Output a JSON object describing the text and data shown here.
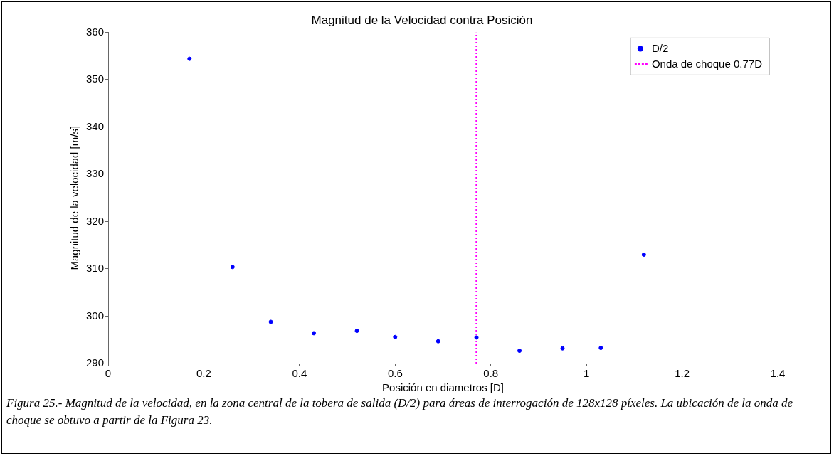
{
  "chart_data": {
    "type": "scatter",
    "title": "Magnitud de la Velocidad contra Posición",
    "xlabel": "Posición en diametros [D]",
    "ylabel": "Magnitud de la velocidad [m/s]",
    "x": [
      0.17,
      0.26,
      0.34,
      0.43,
      0.52,
      0.6,
      0.69,
      0.77,
      0.86,
      0.95,
      1.03,
      1.12
    ],
    "series": [
      {
        "name": "D/2",
        "color": "#0000ff",
        "marker": "circle",
        "values": [
          354.4,
          310.4,
          298.8,
          296.4,
          296.9,
          295.6,
          294.7,
          295.5,
          292.7,
          293.2,
          293.3,
          313.0
        ]
      },
      {
        "name": "Onda de choque 0.77D",
        "color": "#ff00ff",
        "type": "line",
        "line_style": "dotted",
        "marker": "none",
        "x": [
          0.77,
          0.77
        ],
        "values": [
          290,
          360
        ]
      }
    ],
    "xlim": [
      0,
      1.4
    ],
    "xticks": [
      0,
      0.2,
      0.4,
      0.6,
      0.8,
      1,
      1.2,
      1.4
    ],
    "ylim": [
      290,
      360
    ],
    "yticks": [
      290,
      300,
      310,
      320,
      330,
      340,
      350,
      360
    ],
    "grid": false,
    "legend": "top right",
    "annotations": [
      "Figura 25.- Magnitud de la velocidad, en la zona central de la tobera de salida (D/2) para áreas de interrogación de 128x128 píxeles. La ubicación de la onda de choque se obtuvo a partir de la Figura 23."
    ]
  }
}
